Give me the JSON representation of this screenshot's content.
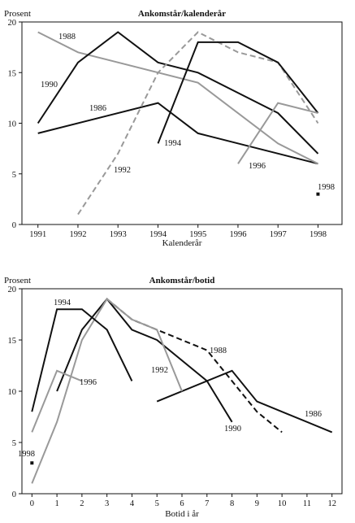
{
  "chart_data": [
    {
      "type": "line",
      "title": "Ankomstår/kalenderår",
      "ylabel": "Prosent",
      "xlabel": "Kalenderår",
      "xlim": [
        1990.6,
        1998.6
      ],
      "ylim": [
        0,
        20
      ],
      "x_ticks": [
        1991,
        1992,
        1993,
        1994,
        1995,
        1996,
        1997,
        1998
      ],
      "y_ticks": [
        0,
        5,
        10,
        15,
        20
      ],
      "grid": false,
      "legend": "none (series labelled inline)",
      "series": [
        {
          "name": "1986",
          "color": "#111111",
          "dash": "solid",
          "points": [
            [
              1991,
              9
            ],
            [
              1994,
              12
            ],
            [
              1995,
              9
            ],
            [
              1998,
              6
            ]
          ]
        },
        {
          "name": "1988",
          "color": "#999999",
          "dash": "solid",
          "points": [
            [
              1991,
              19
            ],
            [
              1992,
              17
            ],
            [
              1995,
              14
            ],
            [
              1997,
              8
            ],
            [
              1998,
              6
            ]
          ]
        },
        {
          "name": "1990",
          "color": "#111111",
          "dash": "solid",
          "points": [
            [
              1991,
              10
            ],
            [
              1992,
              16
            ],
            [
              1993,
              19
            ],
            [
              1994,
              16
            ],
            [
              1995,
              15
            ],
            [
              1997,
              11
            ],
            [
              1998,
              7
            ]
          ]
        },
        {
          "name": "1992",
          "color": "#999999",
          "dash": "dashed",
          "points": [
            [
              1992,
              1
            ],
            [
              1993,
              7
            ],
            [
              1994,
              15
            ],
            [
              1995,
              19
            ],
            [
              1996,
              17
            ],
            [
              1997,
              16
            ],
            [
              1998,
              10
            ]
          ]
        },
        {
          "name": "1994",
          "color": "#111111",
          "dash": "solid",
          "points": [
            [
              1994,
              8
            ],
            [
              1995,
              18
            ],
            [
              1996,
              18
            ],
            [
              1997,
              16
            ],
            [
              1998,
              11
            ]
          ]
        },
        {
          "name": "1996",
          "color": "#999999",
          "dash": "solid",
          "points": [
            [
              1996,
              6
            ],
            [
              1997,
              12
            ],
            [
              1998,
              11
            ]
          ]
        },
        {
          "name": "1998",
          "color": "#111111",
          "dash": "point",
          "points": [
            [
              1998,
              3
            ]
          ]
        }
      ]
    },
    {
      "type": "line",
      "title": "Ankomstår/botid",
      "ylabel": "Prosent",
      "xlabel": "Botid i år",
      "xlim": [
        -0.4,
        12.4
      ],
      "ylim": [
        0,
        20
      ],
      "x_ticks": [
        0,
        1,
        2,
        3,
        4,
        5,
        6,
        7,
        8,
        9,
        10,
        11,
        12
      ],
      "y_ticks": [
        0,
        5,
        10,
        15,
        20
      ],
      "grid": false,
      "legend": "none (series labelled inline)",
      "series": [
        {
          "name": "1986",
          "color": "#111111",
          "dash": "solid",
          "points": [
            [
              5,
              9
            ],
            [
              8,
              12
            ],
            [
              9,
              9
            ],
            [
              12,
              6
            ]
          ]
        },
        {
          "name": "1988",
          "color": "#111111",
          "dash": "dashed",
          "points": [
            [
              3,
              19
            ],
            [
              4,
              17
            ],
            [
              7,
              14
            ],
            [
              9,
              8
            ],
            [
              10,
              6
            ]
          ]
        },
        {
          "name": "1990",
          "color": "#111111",
          "dash": "solid",
          "points": [
            [
              1,
              10
            ],
            [
              2,
              16
            ],
            [
              3,
              19
            ],
            [
              4,
              16
            ],
            [
              5,
              15
            ],
            [
              7,
              11
            ],
            [
              8,
              7
            ]
          ]
        },
        {
          "name": "1992",
          "color": "#999999",
          "dash": "solid",
          "points": [
            [
              0,
              1
            ],
            [
              1,
              7
            ],
            [
              2,
              15
            ],
            [
              3,
              19
            ],
            [
              4,
              17
            ],
            [
              5,
              16
            ],
            [
              6,
              10
            ]
          ]
        },
        {
          "name": "1994",
          "color": "#111111",
          "dash": "solid",
          "points": [
            [
              0,
              8
            ],
            [
              1,
              18
            ],
            [
              2,
              18
            ],
            [
              3,
              16
            ],
            [
              4,
              11
            ]
          ]
        },
        {
          "name": "1996",
          "color": "#999999",
          "dash": "solid",
          "points": [
            [
              0,
              6
            ],
            [
              1,
              12
            ],
            [
              2,
              11
            ]
          ]
        },
        {
          "name": "1998",
          "color": "#111111",
          "dash": "point",
          "points": [
            [
              0,
              3
            ]
          ]
        }
      ]
    }
  ]
}
